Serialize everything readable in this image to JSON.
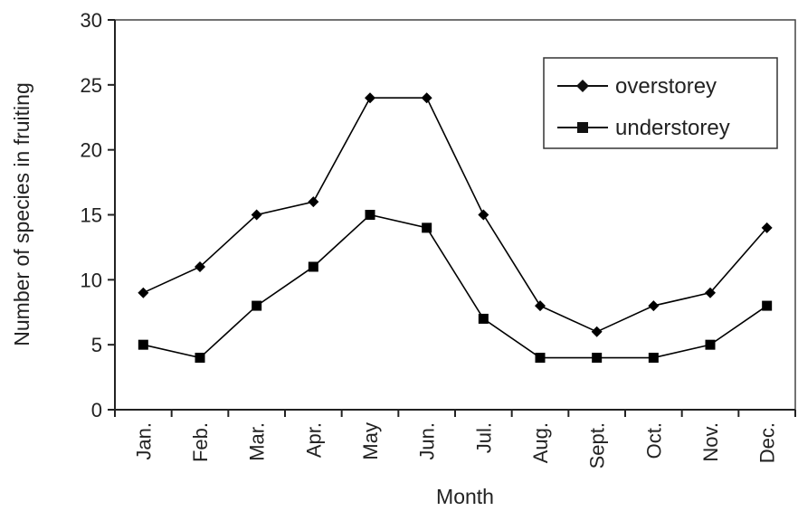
{
  "chart_data": {
    "type": "line",
    "title": "",
    "xlabel": "Month",
    "ylabel": "Number of species in fruiting",
    "categories": [
      "Jan.",
      "Feb.",
      "Mar.",
      "Apr.",
      "May",
      "Jun.",
      "Jul.",
      "Aug.",
      "Sept.",
      "Oct.",
      "Nov.",
      "Dec."
    ],
    "ylim": [
      0,
      30
    ],
    "yticks": [
      0,
      5,
      10,
      15,
      20,
      25,
      30
    ],
    "ytick_labels": [
      "0",
      "5",
      "10",
      "15",
      "20",
      "25",
      "30"
    ],
    "grid": false,
    "legend_position": "top-right",
    "series": [
      {
        "name": "overstorey",
        "marker": "diamond",
        "color": "#000000",
        "values": [
          9,
          11,
          15,
          16,
          24,
          24,
          15,
          8,
          6,
          8,
          9,
          14
        ]
      },
      {
        "name": "understorey",
        "marker": "square",
        "color": "#000000",
        "values": [
          5,
          4,
          8,
          11,
          15,
          14,
          7,
          4,
          4,
          4,
          5,
          8
        ]
      }
    ]
  }
}
